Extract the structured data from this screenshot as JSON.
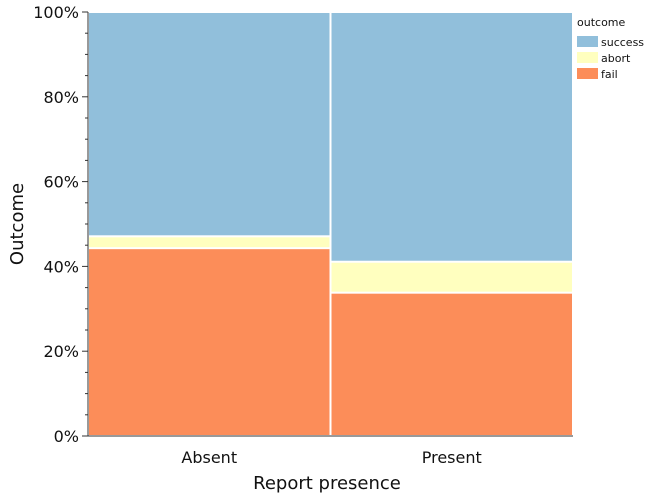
{
  "chart_data": {
    "type": "mosaic",
    "xlabel": "Report presence",
    "ylabel": "Outcome",
    "ylim": [
      0,
      100
    ],
    "y_ticks": [
      "0%",
      "20%",
      "40%",
      "60%",
      "80%",
      "100%"
    ],
    "y_tick_values": [
      0,
      20,
      40,
      60,
      80,
      100
    ],
    "categories": [
      "Absent",
      "Present"
    ],
    "category_widths": [
      0.5,
      0.5
    ],
    "legend_title": "outcome",
    "legend_position": "top-right",
    "series": [
      {
        "name": "fail",
        "color": "#fc8d59",
        "values": [
          44.3,
          33.8
        ]
      },
      {
        "name": "abort",
        "color": "#ffffbf",
        "values": [
          2.8,
          7.3
        ]
      },
      {
        "name": "success",
        "color": "#91bfdb",
        "values": [
          52.9,
          58.9
        ]
      }
    ],
    "legend_order": [
      "success",
      "abort",
      "fail"
    ]
  }
}
